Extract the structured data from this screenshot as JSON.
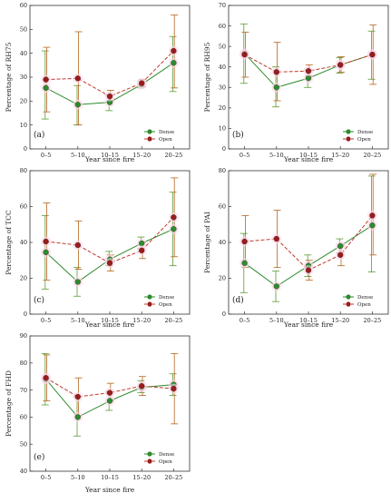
{
  "x_categories": [
    "0–5",
    "5–10",
    "10–15",
    "15–20",
    "20–25"
  ],
  "xlabel": "Year since fire",
  "legend": {
    "dense_label": "Dense",
    "open_label": "Open"
  },
  "colors": {
    "dense": "#2e8b2e",
    "open": "#9a1c1c",
    "dense_line": "#2e8b2e",
    "open_line": "#c0392b",
    "open_err": "#b5651d",
    "dense_err": "#5a9a30",
    "axis": "#333333",
    "halo": "#ffd6e6"
  },
  "chart_data": [
    {
      "type": "line",
      "panel_label": "(a)",
      "ylabel": "Percentage of RH75",
      "ylim": [
        0,
        60
      ],
      "yticks": [
        0,
        10,
        20,
        30,
        40,
        50,
        60
      ],
      "categories": [
        "0–5",
        "5–10",
        "10–15",
        "15–20",
        "20–25"
      ],
      "series": [
        {
          "name": "Dense",
          "values": [
            25.5,
            18.5,
            19.5,
            27.0,
            36.0
          ],
          "err_low": [
            12.5,
            10.0,
            16.0,
            25.5,
            24.0
          ],
          "err_high": [
            41.0,
            26.5,
            22.5,
            28.5,
            47.0
          ]
        },
        {
          "name": "Open",
          "values": [
            29.0,
            29.5,
            22.0,
            27.5,
            41.0
          ],
          "err_low": [
            15.5,
            10.0,
            20.0,
            26.0,
            25.5
          ],
          "err_high": [
            42.5,
            49.0,
            24.5,
            29.0,
            56.0
          ]
        }
      ]
    },
    {
      "type": "line",
      "panel_label": "(b)",
      "ylabel": "Percentage of RH95",
      "ylim": [
        0,
        70
      ],
      "yticks": [
        0,
        10,
        20,
        30,
        40,
        50,
        60,
        70
      ],
      "categories": [
        "0–5",
        "5–10",
        "10–15",
        "15–20",
        "20–25"
      ],
      "series": [
        {
          "name": "Dense",
          "values": [
            46.5,
            30.0,
            34.5,
            41.0,
            46.0
          ],
          "err_low": [
            32.0,
            20.5,
            30.0,
            37.0,
            34.0
          ],
          "err_high": [
            61.0,
            40.0,
            38.5,
            44.5,
            57.5
          ]
        },
        {
          "name": "Open",
          "values": [
            46.0,
            37.5,
            38.0,
            41.0,
            46.0
          ],
          "err_low": [
            35.0,
            23.5,
            35.5,
            37.5,
            31.5
          ],
          "err_high": [
            57.0,
            52.0,
            41.0,
            45.0,
            60.5
          ]
        }
      ]
    },
    {
      "type": "line",
      "panel_label": "(c)",
      "ylabel": "Percentage of TCC",
      "ylim": [
        0,
        80
      ],
      "yticks": [
        0,
        20,
        40,
        60,
        80
      ],
      "categories": [
        "0–5",
        "5–10",
        "10–15",
        "15–20",
        "20–25"
      ],
      "series": [
        {
          "name": "Dense",
          "values": [
            34.5,
            18.0,
            30.5,
            39.5,
            47.5
          ],
          "err_low": [
            14.0,
            10.0,
            27.0,
            36.5,
            27.0
          ],
          "err_high": [
            55.0,
            26.0,
            35.0,
            43.0,
            68.0
          ]
        },
        {
          "name": "Open",
          "values": [
            40.5,
            38.5,
            28.5,
            35.5,
            54.0
          ],
          "err_low": [
            19.0,
            25.0,
            24.0,
            31.0,
            32.0
          ],
          "err_high": [
            62.0,
            52.0,
            33.0,
            40.0,
            76.0
          ]
        }
      ]
    },
    {
      "type": "line",
      "panel_label": "(d)",
      "ylabel": "Percentage of PAI",
      "ylim": [
        0,
        80
      ],
      "yticks": [
        0,
        20,
        40,
        60,
        80
      ],
      "categories": [
        "0–5",
        "5–10",
        "10–15",
        "15–20",
        "20–25"
      ],
      "series": [
        {
          "name": "Dense",
          "values": [
            28.5,
            15.5,
            27.0,
            38.0,
            49.5
          ],
          "err_low": [
            12.0,
            7.0,
            21.0,
            34.0,
            23.5
          ],
          "err_high": [
            45.0,
            24.0,
            33.0,
            42.0,
            77.0
          ]
        },
        {
          "name": "Open",
          "values": [
            40.5,
            42.0,
            24.5,
            33.0,
            55.0
          ],
          "err_low": [
            26.0,
            26.0,
            19.0,
            27.0,
            33.0
          ],
          "err_high": [
            55.0,
            58.0,
            30.0,
            38.0,
            78.0
          ]
        }
      ]
    },
    {
      "type": "line",
      "panel_label": "(e)",
      "ylabel": "Percentage of FHD",
      "ylim": [
        40,
        90
      ],
      "yticks": [
        40,
        50,
        60,
        70,
        80,
        90
      ],
      "categories": [
        "0–5",
        "5–10",
        "10–15",
        "15–20",
        "20–25"
      ],
      "series": [
        {
          "name": "Dense",
          "values": [
            74.0,
            60.0,
            66.0,
            71.0,
            72.0
          ],
          "err_low": [
            64.5,
            53.0,
            62.5,
            69.0,
            68.0
          ],
          "err_high": [
            83.5,
            67.5,
            69.5,
            73.5,
            76.0
          ]
        },
        {
          "name": "Open",
          "values": [
            74.5,
            67.5,
            69.0,
            71.5,
            70.5
          ],
          "err_low": [
            66.0,
            60.5,
            66.0,
            68.0,
            57.5
          ],
          "err_high": [
            83.0,
            74.5,
            72.5,
            75.0,
            83.5
          ]
        }
      ]
    }
  ]
}
